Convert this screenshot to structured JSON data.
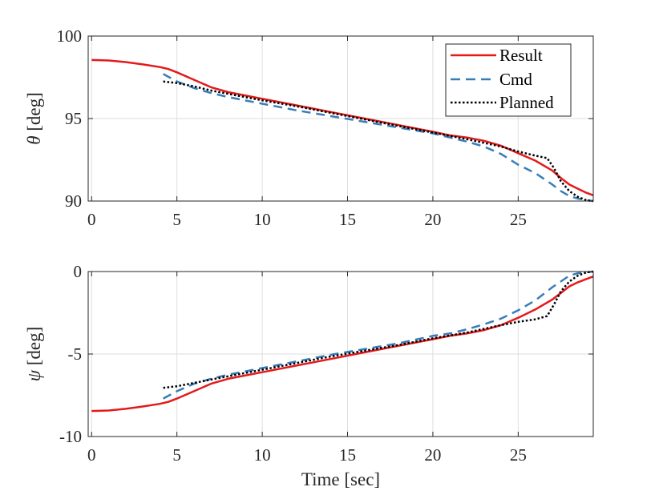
{
  "chart_data": [
    {
      "type": "line",
      "ylabel_symbol": "θ",
      "ylabel_unit": " [deg]",
      "xlabel": "",
      "xlim": [
        -0.2,
        29.4
      ],
      "ylim": [
        90,
        100
      ],
      "xticks": [
        0,
        5,
        10,
        15,
        20,
        25
      ],
      "xtick_labels": [
        "0",
        "5",
        "10",
        "15",
        "20",
        "25"
      ],
      "yticks": [
        90,
        95,
        100
      ],
      "ytick_labels": [
        "90",
        "95",
        "100"
      ],
      "grid": true,
      "legend": {
        "position": "top-right",
        "entries": [
          "Result",
          "Cmd",
          "Planned"
        ]
      },
      "series": [
        {
          "name": "Result",
          "color": "#e31a1c",
          "dash": "solid",
          "x": [
            0,
            1,
            2,
            3,
            4,
            4.5,
            5,
            6,
            7,
            8,
            10,
            12,
            14,
            16,
            18,
            20,
            21,
            22,
            23,
            24,
            25,
            26,
            27,
            27.5,
            28,
            28.5,
            29,
            29.4
          ],
          "y": [
            98.55,
            98.52,
            98.42,
            98.28,
            98.12,
            98.0,
            97.8,
            97.35,
            96.9,
            96.6,
            96.2,
            95.8,
            95.4,
            95.0,
            94.6,
            94.2,
            93.98,
            93.85,
            93.65,
            93.35,
            92.9,
            92.45,
            91.85,
            91.4,
            91.0,
            90.75,
            90.5,
            90.35
          ]
        },
        {
          "name": "Cmd",
          "color": "#377eb8",
          "dash": "dashed",
          "x": [
            4.2,
            5,
            6,
            7,
            8,
            10,
            12,
            14,
            16,
            18,
            20,
            21,
            22,
            23,
            24,
            25,
            26,
            27,
            27.5,
            28,
            28.5,
            29,
            29.4
          ],
          "y": [
            97.7,
            97.25,
            96.85,
            96.55,
            96.3,
            95.9,
            95.5,
            95.15,
            94.8,
            94.45,
            94.1,
            93.85,
            93.6,
            93.3,
            92.85,
            92.2,
            91.7,
            91.0,
            90.6,
            90.3,
            90.15,
            90.05,
            90.0
          ]
        },
        {
          "name": "Planned",
          "color": "#000000",
          "dash": "dotted",
          "x": [
            4.2,
            5,
            6,
            7,
            8,
            10,
            12,
            14,
            16,
            18,
            20,
            22,
            24,
            25,
            26,
            26.7,
            27.1,
            27.5,
            28,
            28.5,
            29,
            29.4
          ],
          "y": [
            97.25,
            97.15,
            96.95,
            96.7,
            96.5,
            96.1,
            95.75,
            95.35,
            94.95,
            94.55,
            94.15,
            93.75,
            93.3,
            93.0,
            92.75,
            92.6,
            92.0,
            91.2,
            90.6,
            90.25,
            90.05,
            90.0
          ]
        }
      ]
    },
    {
      "type": "line",
      "ylabel_symbol": "ψ",
      "ylabel_unit": " [deg]",
      "xlabel": "Time [sec]",
      "xlim": [
        -0.2,
        29.4
      ],
      "ylim": [
        -10,
        0
      ],
      "xticks": [
        0,
        5,
        10,
        15,
        20,
        25
      ],
      "xtick_labels": [
        "0",
        "5",
        "10",
        "15",
        "20",
        "25"
      ],
      "yticks": [
        -10,
        -5,
        0
      ],
      "ytick_labels": [
        "-10",
        "-5",
        "0"
      ],
      "grid": true,
      "series": [
        {
          "name": "Result",
          "color": "#e31a1c",
          "dash": "solid",
          "x": [
            0,
            1,
            2,
            3,
            4,
            4.5,
            5,
            6,
            7,
            8,
            10,
            12,
            14,
            16,
            18,
            20,
            21,
            22,
            23,
            24,
            25,
            26,
            27,
            27.5,
            28,
            28.5,
            29,
            29.4
          ],
          "y": [
            -8.45,
            -8.42,
            -8.32,
            -8.18,
            -8.02,
            -7.9,
            -7.7,
            -7.25,
            -6.8,
            -6.5,
            -6.1,
            -5.7,
            -5.3,
            -4.9,
            -4.5,
            -4.1,
            -3.9,
            -3.75,
            -3.55,
            -3.25,
            -2.8,
            -2.3,
            -1.7,
            -1.3,
            -0.9,
            -0.65,
            -0.45,
            -0.3
          ]
        },
        {
          "name": "Cmd",
          "color": "#377eb8",
          "dash": "dashed",
          "x": [
            4.2,
            5,
            6,
            7,
            8,
            10,
            12,
            14,
            16,
            18,
            20,
            21,
            22,
            23,
            24,
            25,
            26,
            27,
            27.5,
            28,
            28.5,
            29,
            29.4
          ],
          "y": [
            -7.7,
            -7.25,
            -6.8,
            -6.5,
            -6.25,
            -5.85,
            -5.45,
            -5.05,
            -4.7,
            -4.35,
            -3.9,
            -3.75,
            -3.5,
            -3.2,
            -2.85,
            -2.35,
            -1.75,
            -0.95,
            -0.6,
            -0.25,
            -0.1,
            -0.05,
            0.0
          ]
        },
        {
          "name": "Planned",
          "color": "#000000",
          "dash": "dotted",
          "x": [
            4.2,
            5,
            6,
            7,
            8,
            10,
            12,
            14,
            16,
            18,
            20,
            22,
            24,
            25,
            26,
            26.7,
            27.1,
            27.5,
            28,
            28.5,
            29,
            29.4
          ],
          "y": [
            -7.05,
            -6.95,
            -6.75,
            -6.55,
            -6.35,
            -5.95,
            -5.55,
            -5.15,
            -4.8,
            -4.45,
            -4.05,
            -3.7,
            -3.25,
            -3.05,
            -2.9,
            -2.7,
            -2.0,
            -1.2,
            -0.6,
            -0.25,
            -0.05,
            0.0
          ]
        }
      ]
    }
  ]
}
